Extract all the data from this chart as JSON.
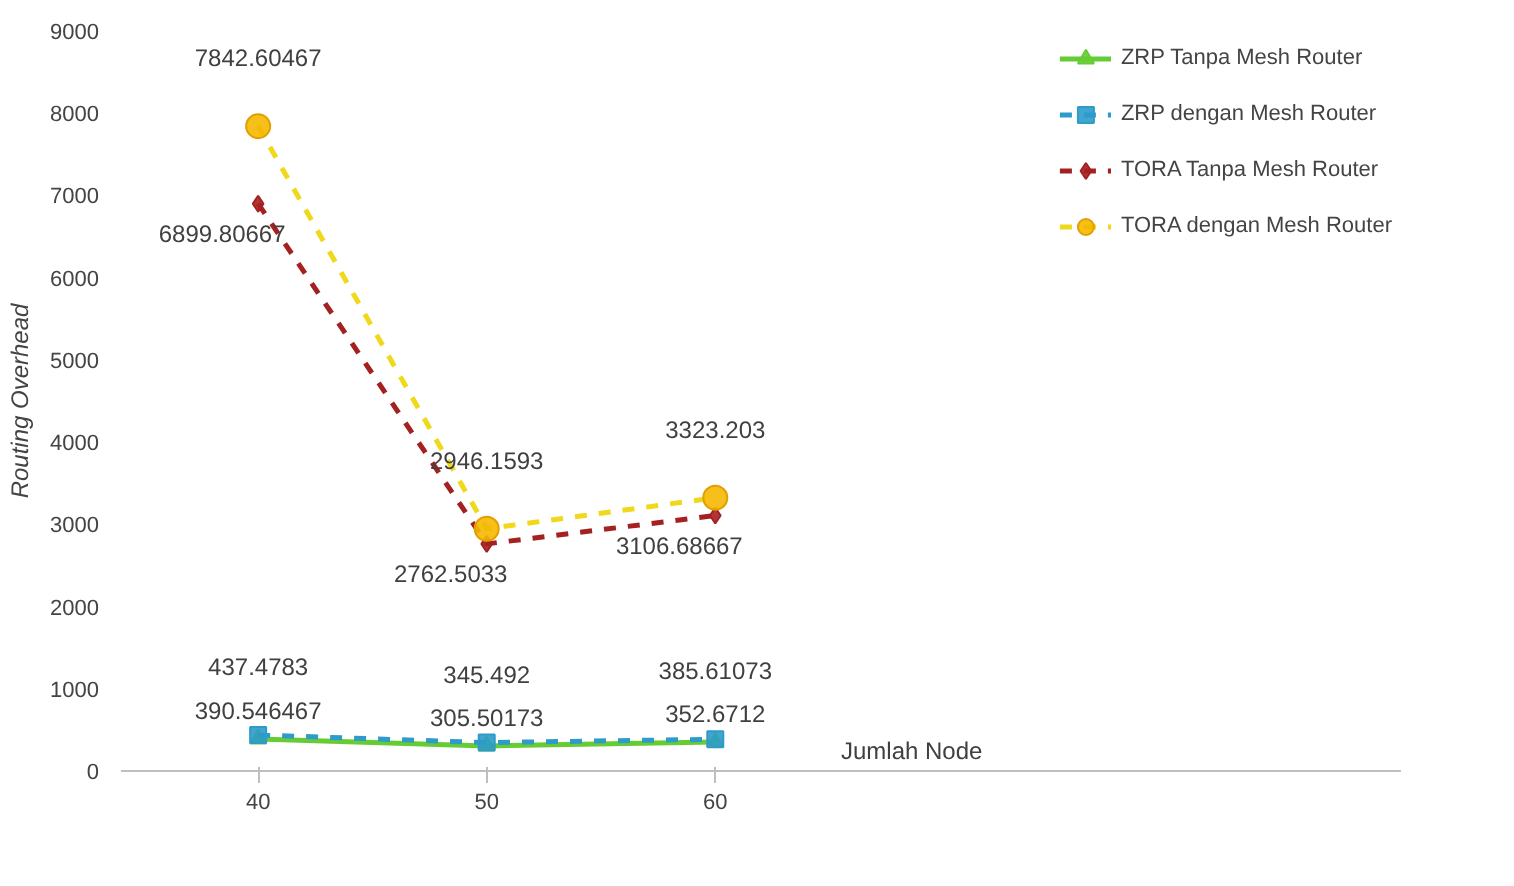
{
  "chart_data": {
    "type": "line",
    "categories": [
      "40",
      "50",
      "60"
    ],
    "xlabel": "Jumlah Node",
    "ylabel": "Routing Overhead",
    "ylim": [
      0,
      9000
    ],
    "yticks": [
      0,
      1000,
      2000,
      3000,
      4000,
      5000,
      6000,
      7000,
      8000,
      9000
    ],
    "grid": false,
    "legend": "right",
    "series": [
      {
        "name": "ZRP Tanpa Mesh Router",
        "color": "#66cc33",
        "marker": "triangle",
        "line_style": "solid",
        "values": [
          390.546467,
          305.50173,
          352.6712
        ],
        "value_labels": [
          "390.546467",
          "305.50173",
          "352.6712"
        ]
      },
      {
        "name": "ZRP dengan Mesh Router",
        "color": "#2e9bc9",
        "marker": "square",
        "line_style": "dashed",
        "values": [
          437.4783,
          345.492,
          385.61073
        ],
        "value_labels": [
          "437.4783",
          "345.492",
          "385.61073"
        ]
      },
      {
        "name": "TORA Tanpa Mesh Router",
        "color": "#a52020",
        "marker": "diamond",
        "line_style": "dashed",
        "values": [
          6899.80667,
          2762.5033,
          3106.68667
        ],
        "value_labels": [
          "6899.80667",
          "2762.5033",
          "3106.68667"
        ]
      },
      {
        "name": "TORA dengan Mesh Router",
        "color": "#f0d81a",
        "marker": "circle",
        "line_style": "dashed",
        "values": [
          7842.60467,
          2946.1593,
          3323.203
        ],
        "value_labels": [
          "7842.60467",
          "2946.1593",
          "3323.203"
        ]
      }
    ]
  }
}
